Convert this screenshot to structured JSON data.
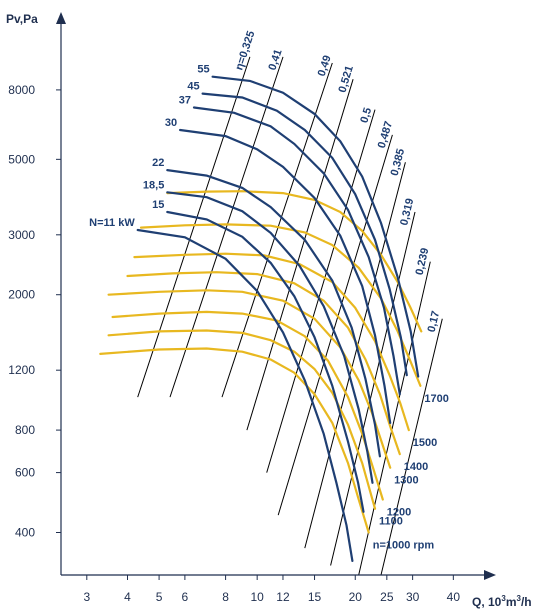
{
  "chart_data": {
    "type": "line",
    "x_scale": "log",
    "y_scale": "log",
    "xlim": [
      2.5,
      45
    ],
    "ylim": [
      300,
      12000
    ],
    "grid": false,
    "x_axis_label": "Q, 10",
    "x_axis_label_sup1": "3",
    "x_axis_label_mid": "m",
    "x_axis_label_sup2": "3",
    "x_axis_label_end": "/h",
    "y_axis_label": "Pv,Pa",
    "x_ticks": [
      3,
      4,
      5,
      6,
      8,
      10,
      12,
      15,
      20,
      25,
      30,
      40
    ],
    "y_ticks": [
      400,
      600,
      800,
      1200,
      2000,
      3000,
      5000,
      8000
    ],
    "colors": {
      "power_curves": "#1f3f73",
      "speed_curves": "#e8b820",
      "efficiency_lines": "#000000",
      "labels": "#1f3f73"
    },
    "power_curves": [
      {
        "label": "N=11 kW",
        "q": [
          4.3,
          6,
          8,
          10,
          12,
          14,
          16,
          17.5,
          18.8,
          19.6
        ],
        "p": [
          3100,
          2950,
          2550,
          2050,
          1550,
          1120,
          780,
          560,
          420,
          330
        ]
      },
      {
        "label": "15",
        "q": [
          5.3,
          7,
          9,
          11,
          13,
          15,
          17,
          19,
          20.4,
          21.2
        ],
        "p": [
          3500,
          3330,
          2960,
          2480,
          1980,
          1500,
          1080,
          740,
          560,
          460
        ]
      },
      {
        "label": "18,5",
        "q": [
          5.3,
          7,
          9,
          11,
          13.5,
          16,
          18.5,
          20.5,
          21.8,
          22.6
        ],
        "p": [
          4000,
          3870,
          3520,
          3040,
          2430,
          1850,
          1320,
          920,
          690,
          560
        ]
      },
      {
        "label": "22",
        "q": [
          5.3,
          7,
          9,
          11,
          14,
          17,
          19.5,
          21.5,
          23,
          23.8
        ],
        "p": [
          4650,
          4480,
          4120,
          3620,
          2900,
          2200,
          1600,
          1130,
          830,
          670
        ]
      },
      {
        "label": "30",
        "q": [
          5.8,
          8,
          10,
          12,
          15,
          18,
          21,
          23,
          24.6,
          25.6
        ],
        "p": [
          6100,
          5850,
          5350,
          4750,
          3850,
          2980,
          2120,
          1520,
          1080,
          840
        ]
      },
      {
        "label": "37",
        "q": [
          6.4,
          8.5,
          11,
          13,
          16,
          19,
          22,
          24.5,
          26.2,
          27.4
        ],
        "p": [
          7100,
          6850,
          6250,
          5550,
          4550,
          3550,
          2580,
          1830,
          1320,
          1020
        ]
      },
      {
        "label": "45",
        "q": [
          6.8,
          9,
          11.5,
          14,
          17,
          20,
          23,
          25.5,
          27.6,
          28.8
        ],
        "p": [
          7800,
          7600,
          6950,
          6100,
          5050,
          3950,
          2900,
          2080,
          1500,
          1160
        ]
      },
      {
        "label": "55",
        "q": [
          7.3,
          9.5,
          12,
          15,
          18,
          21,
          24,
          27,
          29.6,
          31.2
        ],
        "p": [
          8750,
          8500,
          7850,
          6800,
          5650,
          4450,
          3250,
          2250,
          1560,
          1150
        ]
      }
    ],
    "speed_curves": [
      {
        "label": "n=1000 rpm",
        "q": [
          3.3,
          5,
          7,
          9,
          11,
          13,
          15,
          17,
          19,
          20.5,
          22
        ],
        "p": [
          1340,
          1380,
          1390,
          1360,
          1290,
          1180,
          1020,
          840,
          640,
          500,
          400
        ]
      },
      {
        "label": "1100",
        "q": [
          3.5,
          5,
          7,
          9,
          11,
          13,
          15,
          17,
          19,
          21,
          23
        ],
        "p": [
          1520,
          1560,
          1570,
          1545,
          1470,
          1360,
          1210,
          1030,
          830,
          640,
          470
        ]
      },
      {
        "label": "1200",
        "q": [
          3.6,
          5,
          7,
          9,
          11.5,
          14,
          16.5,
          19,
          21,
          22.8,
          24.3
        ],
        "p": [
          1720,
          1760,
          1780,
          1760,
          1680,
          1510,
          1280,
          1000,
          780,
          610,
          500
        ]
      },
      {
        "label": "1300",
        "q": [
          3.5,
          5,
          7,
          9,
          12,
          15,
          18,
          20.5,
          22.5,
          24.2,
          25.6
        ],
        "p": [
          2000,
          2040,
          2060,
          2040,
          1920,
          1700,
          1400,
          1120,
          900,
          730,
          620
        ]
      },
      {
        "label": "1400",
        "q": [
          4.0,
          5.5,
          7.5,
          10,
          13,
          16,
          19,
          21.5,
          23.8,
          25.6,
          27.4
        ],
        "p": [
          2270,
          2310,
          2330,
          2300,
          2160,
          1920,
          1600,
          1290,
          1020,
          820,
          680
        ]
      },
      {
        "label": "1500",
        "q": [
          4.2,
          6,
          8,
          10.5,
          13.5,
          17,
          20,
          23,
          25.5,
          27.5,
          29.2
        ],
        "p": [
          2580,
          2620,
          2640,
          2610,
          2460,
          2180,
          1830,
          1460,
          1160,
          960,
          800
        ]
      },
      {
        "label": "1700",
        "q": [
          4.4,
          6,
          8,
          11,
          14,
          17,
          20.5,
          24,
          27,
          29.5,
          31.7
        ],
        "p": [
          3150,
          3200,
          3220,
          3190,
          3050,
          2800,
          2400,
          1950,
          1560,
          1280,
          1080
        ]
      },
      {
        "label": "",
        "q": [
          5.3,
          7,
          9,
          12,
          15,
          18,
          21,
          24,
          27,
          29.5,
          31.9
        ],
        "p": [
          3980,
          4020,
          4030,
          3980,
          3800,
          3500,
          3080,
          2620,
          2180,
          1840,
          1560
        ]
      }
    ],
    "efficiency_lines": [
      {
        "label": "η=0,325",
        "q": [
          4.3,
          9.5
        ],
        "p": [
          1000,
          10000
        ]
      },
      {
        "label": "0,41",
        "q": [
          5.4,
          12
        ],
        "p": [
          1000,
          10000
        ]
      },
      {
        "label": "0,49",
        "q": [
          7.8,
          17
        ],
        "p": [
          1000,
          9600
        ]
      },
      {
        "label": "0,521",
        "q": [
          9.3,
          19.7
        ],
        "p": [
          800,
          8600
        ]
      },
      {
        "label": "0,5",
        "q": [
          10.7,
          23
        ],
        "p": [
          600,
          7000
        ]
      },
      {
        "label": "0,487",
        "q": [
          11.6,
          26
        ],
        "p": [
          450,
          5900
        ]
      },
      {
        "label": "0,385",
        "q": [
          14,
          28.5
        ],
        "p": [
          360,
          4900
        ]
      },
      {
        "label": "0,319",
        "q": [
          16.8,
          30.5
        ],
        "p": [
          320,
          3500
        ]
      },
      {
        "label": "0,239",
        "q": [
          20.5,
          34
        ],
        "p": [
          300,
          2500
        ]
      },
      {
        "label": "0,17",
        "q": [
          24,
          37
        ],
        "p": [
          300,
          1700
        ]
      }
    ]
  }
}
